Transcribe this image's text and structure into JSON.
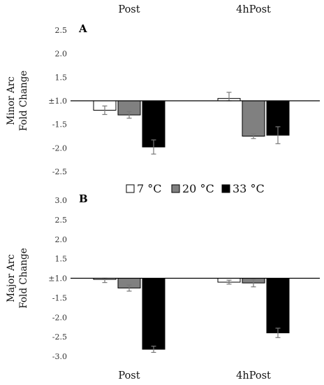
{
  "colors": {
    "s7": "#ffffff",
    "s20": "#808080",
    "s33": "#000000",
    "axis": "#000000"
  },
  "legend": {
    "items": [
      "7 °C",
      "20 °C",
      "33 °C"
    ]
  },
  "chart_data": [
    {
      "type": "bar",
      "panel_label": "A",
      "ylabel": [
        "Minor Arc",
        "Fold Change"
      ],
      "categories": [
        "Post",
        "4hPost"
      ],
      "ytick_labels": [
        "2.5",
        "2.0",
        "1.5",
        "±1.0",
        "-1.5",
        "-2.0",
        "-2.5"
      ],
      "ylim": [
        -2.5,
        2.5
      ],
      "grid": false,
      "series": [
        {
          "name": "7 °C",
          "values": [
            -1.2,
            1.05
          ],
          "errors": [
            0.09,
            0.13
          ]
        },
        {
          "name": "20 °C",
          "values": [
            -1.3,
            -1.75
          ],
          "errors": [
            0.07,
            0.05
          ]
        },
        {
          "name": "33 °C",
          "values": [
            -1.98,
            -1.73
          ],
          "errors": [
            0.15,
            0.18
          ]
        }
      ]
    },
    {
      "type": "bar",
      "panel_label": "B",
      "ylabel": [
        "Major Arc",
        "Fold Change"
      ],
      "categories": [
        "Post",
        "4hPost"
      ],
      "ytick_labels": [
        "3.0",
        "2.5",
        "2.0",
        "1.5",
        "±1.0",
        "-1.5",
        "-2.0",
        "-2.5",
        "-3.0"
      ],
      "ylim": [
        -3.0,
        3.0
      ],
      "grid": false,
      "series": [
        {
          "name": "7 °C",
          "values": [
            -1.03,
            -1.1
          ],
          "errors": [
            0.08,
            0.05
          ]
        },
        {
          "name": "20 °C",
          "values": [
            -1.25,
            -1.12
          ],
          "errors": [
            0.08,
            0.1
          ]
        },
        {
          "name": "33 °C",
          "values": [
            -2.82,
            -2.4
          ],
          "errors": [
            0.08,
            0.12
          ]
        }
      ]
    }
  ]
}
